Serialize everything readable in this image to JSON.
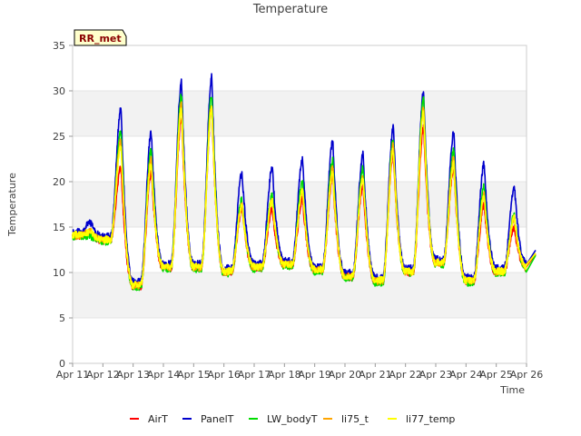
{
  "chart_data": {
    "type": "line",
    "title": "Temperature",
    "xlabel": "Time",
    "ylabel": "Temperature",
    "badge": "RR_met",
    "ylim": [
      0,
      35
    ],
    "xlim": [
      0,
      15
    ],
    "yticks": [
      0,
      5,
      10,
      15,
      20,
      25,
      30,
      35
    ],
    "xticks": [
      {
        "pos": 0,
        "label": "Apr 11"
      },
      {
        "pos": 1,
        "label": "Apr 12"
      },
      {
        "pos": 2,
        "label": "Apr 13"
      },
      {
        "pos": 3,
        "label": "Apr 14"
      },
      {
        "pos": 4,
        "label": "Apr 15"
      },
      {
        "pos": 5,
        "label": "Apr 16"
      },
      {
        "pos": 6,
        "label": "Apr 17"
      },
      {
        "pos": 7,
        "label": "Apr 18"
      },
      {
        "pos": 8,
        "label": "Apr 19"
      },
      {
        "pos": 9,
        "label": "Apr 20"
      },
      {
        "pos": 10,
        "label": "Apr 21"
      },
      {
        "pos": 11,
        "label": "Apr 22"
      },
      {
        "pos": 12,
        "label": "Apr 23"
      },
      {
        "pos": 13,
        "label": "Apr 24"
      },
      {
        "pos": 14,
        "label": "Apr 25"
      },
      {
        "pos": 15,
        "label": "Apr 26"
      }
    ],
    "grid_bands": true,
    "legend_position": "bottom",
    "daily_pattern": {
      "days": [
        "Apr 11",
        "Apr 12",
        "Apr 13",
        "Apr 14",
        "Apr 15",
        "Apr 16",
        "Apr 17",
        "Apr 18",
        "Apr 19",
        "Apr 20",
        "Apr 21",
        "Apr 22",
        "Apr 23",
        "Apr 24",
        "Apr 25"
      ],
      "mins_at_day_start": [
        14.0,
        13.5,
        8.5,
        10.5,
        10.5,
        10.0,
        10.5,
        10.8,
        10.2,
        9.5,
        9.0,
        10.0,
        11.0,
        9.0,
        10.0,
        10.5
      ],
      "peak_fraction": 0.6
    },
    "series": [
      {
        "name": "AirT",
        "color": "#ff0000",
        "offset": 0.0,
        "peaks": [
          14.5,
          21.5,
          21.0,
          27.0,
          28.0,
          17.0,
          17.0,
          18.0,
          20.5,
          19.5,
          23.0,
          26.0,
          21.5,
          17.5,
          15.0
        ]
      },
      {
        "name": "PanelT",
        "color": "#0000cc",
        "offset": 1.3,
        "peaks": [
          15.5,
          28.0,
          25.5,
          31.0,
          31.5,
          21.0,
          21.5,
          22.5,
          24.5,
          23.0,
          26.0,
          30.0,
          25.5,
          22.0,
          19.5
        ]
      },
      {
        "name": "LW_bodyT",
        "color": "#00dd00",
        "offset": -0.3,
        "peaks": [
          14.0,
          25.5,
          23.5,
          29.5,
          29.5,
          18.0,
          18.5,
          20.0,
          22.5,
          21.5,
          24.5,
          29.0,
          23.5,
          19.5,
          16.5
        ]
      },
      {
        "name": "li75_t",
        "color": "#ffa500",
        "offset": 0.2,
        "peaks": [
          14.5,
          24.5,
          22.5,
          28.5,
          28.5,
          17.5,
          18.0,
          19.0,
          21.5,
          20.5,
          24.0,
          28.0,
          22.5,
          18.5,
          16.0
        ]
      },
      {
        "name": "li77_temp",
        "color": "#ffff00",
        "offset": 0.4,
        "peaks": [
          14.5,
          24.0,
          22.0,
          28.0,
          28.0,
          17.5,
          18.0,
          19.0,
          21.0,
          20.5,
          23.5,
          27.5,
          22.0,
          18.5,
          16.0
        ]
      }
    ]
  }
}
